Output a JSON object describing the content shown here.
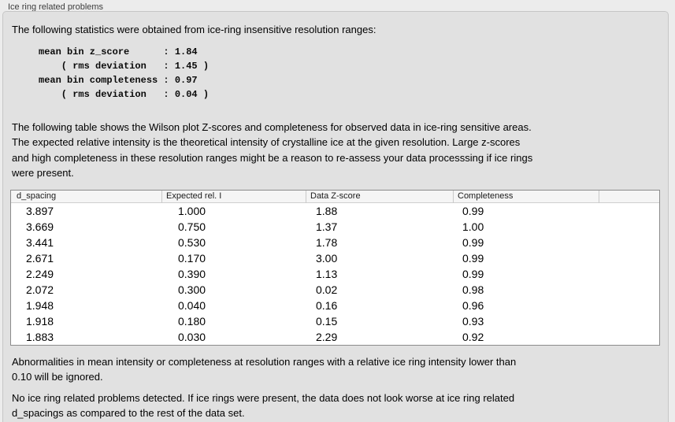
{
  "panel": {
    "title": "Ice ring related problems"
  },
  "stats": {
    "intro": "The following statistics were obtained from ice-ring insensitive resolution ranges:",
    "block": "mean bin z_score      : 1.84\n    ( rms deviation   : 1.45 )\nmean bin completeness : 0.97\n    ( rms deviation   : 0.04 )"
  },
  "description": "The following table shows the Wilson plot Z-scores and completeness for observed data in ice-ring sensitive areas.\nThe expected relative intensity is the theoretical intensity of crystalline ice at the given resolution. Large z-scores\nand high completeness in these resolution ranges might be a reason to re-assess your data processsing if ice rings\nwere present.",
  "table": {
    "columns": [
      "d_spacing",
      "Expected rel. I",
      "Data Z-score",
      "Completeness",
      ""
    ],
    "rows": [
      [
        "3.897",
        "1.000",
        "1.88",
        "0.99"
      ],
      [
        "3.669",
        "0.750",
        "1.37",
        "1.00"
      ],
      [
        "3.441",
        "0.530",
        "1.78",
        "0.99"
      ],
      [
        "2.671",
        "0.170",
        "3.00",
        "0.99"
      ],
      [
        "2.249",
        "0.390",
        "1.13",
        "0.99"
      ],
      [
        "2.072",
        "0.300",
        "0.02",
        "0.98"
      ],
      [
        "1.948",
        "0.040",
        "0.16",
        "0.96"
      ],
      [
        "1.918",
        "0.180",
        "0.15",
        "0.93"
      ],
      [
        "1.883",
        "0.030",
        "2.29",
        "0.92"
      ]
    ]
  },
  "notes": {
    "ignore_rule": "Abnormalities in mean intensity or completeness at resolution ranges with a relative ice ring intensity lower than\n0.10 will be ignored.",
    "conclusion": "No ice ring related problems detected. If ice rings were present, the data does not look worse at ice ring related\nd_spacings as compared to the rest of the data set."
  }
}
